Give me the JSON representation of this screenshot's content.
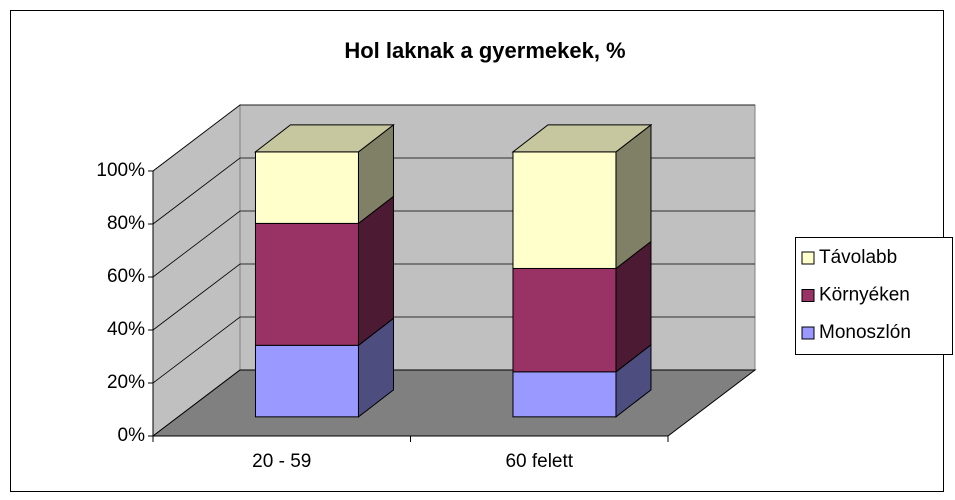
{
  "chart_data": {
    "type": "bar3d_stacked",
    "title": "Hol laknak a gyermekek, %",
    "categories": [
      "20 - 59",
      "60 felett"
    ],
    "series": [
      {
        "name": "Monoszlón",
        "color": "#9999ff",
        "values": [
          27,
          17
        ]
      },
      {
        "name": "Környéken",
        "color": "#993366",
        "values": [
          46,
          39
        ]
      },
      {
        "name": "Távolabb",
        "color": "#ffffcc",
        "values": [
          27,
          44
        ]
      }
    ],
    "ylim": [
      0,
      100
    ],
    "yticks": [
      {
        "value": 0,
        "label": "0%"
      },
      {
        "value": 20,
        "label": "20%"
      },
      {
        "value": 40,
        "label": "40%"
      },
      {
        "value": 60,
        "label": "60%"
      },
      {
        "value": 80,
        "label": "80%"
      },
      {
        "value": 100,
        "label": "100%"
      }
    ],
    "grid": true,
    "legend": "right"
  }
}
